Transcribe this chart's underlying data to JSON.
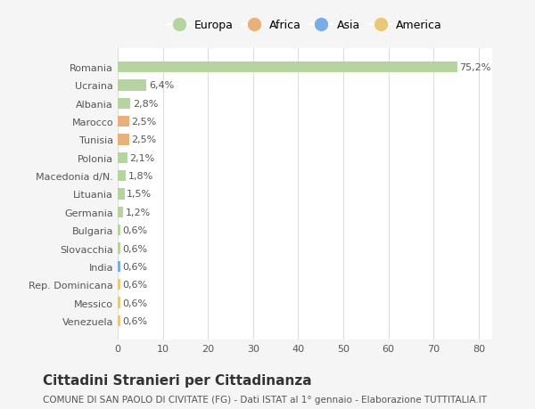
{
  "countries": [
    "Venezuela",
    "Messico",
    "Rep. Dominicana",
    "India",
    "Slovacchia",
    "Bulgaria",
    "Germania",
    "Lituania",
    "Macedonia d/N.",
    "Polonia",
    "Tunisia",
    "Marocco",
    "Albania",
    "Ucraina",
    "Romania"
  ],
  "values": [
    0.6,
    0.6,
    0.6,
    0.6,
    0.6,
    0.6,
    1.2,
    1.5,
    1.8,
    2.1,
    2.5,
    2.5,
    2.8,
    6.4,
    75.2
  ],
  "labels": [
    "0,6%",
    "0,6%",
    "0,6%",
    "0,6%",
    "0,6%",
    "0,6%",
    "1,2%",
    "1,5%",
    "1,8%",
    "2,1%",
    "2,5%",
    "2,5%",
    "2,8%",
    "6,4%",
    "75,2%"
  ],
  "colors": [
    "#e8c97a",
    "#e8c97a",
    "#e8c97a",
    "#7aace8",
    "#b5d4a0",
    "#b5d4a0",
    "#b5d4a0",
    "#b5d4a0",
    "#b5d4a0",
    "#b5d4a0",
    "#e8b07a",
    "#e8b07a",
    "#b5d4a0",
    "#b5d4a0",
    "#b5d4a0"
  ],
  "legend_labels": [
    "Europa",
    "Africa",
    "Asia",
    "America"
  ],
  "legend_colors": [
    "#b5d4a0",
    "#e8b07a",
    "#7aace8",
    "#e8c97a"
  ],
  "title": "Cittadini Stranieri per Cittadinanza",
  "subtitle": "COMUNE DI SAN PAOLO DI CIVITATE (FG) - Dati ISTAT al 1° gennaio - Elaborazione TUTTITALIA.IT",
  "xlim": [
    0,
    83
  ],
  "xticks": [
    0,
    10,
    20,
    30,
    40,
    50,
    60,
    70,
    80
  ],
  "bg_color": "#f5f5f5",
  "bar_bg_color": "#ffffff",
  "grid_color": "#dddddd",
  "text_color": "#555555"
}
